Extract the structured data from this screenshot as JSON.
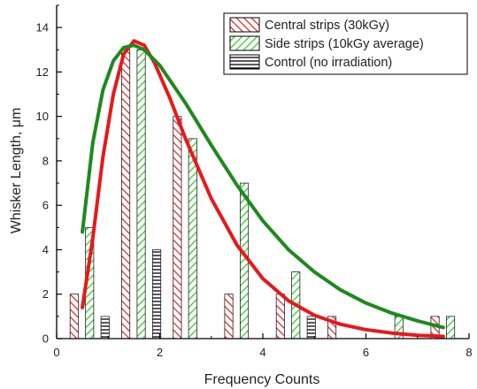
{
  "chart_data": {
    "type": "bar",
    "title": "",
    "xlabel": "Frequency Counts",
    "ylabel": "Whisker Length, μm",
    "xlim": [
      0,
      8
    ],
    "ylim": [
      0,
      15
    ],
    "x_ticks": [
      0,
      2,
      4,
      6,
      8
    ],
    "y_ticks": [
      0,
      2,
      4,
      6,
      8,
      10,
      12,
      14
    ],
    "grid": false,
    "legend_position": "top-right",
    "series": [
      {
        "name": "Central strips (30kGy)",
        "color": "#e02020",
        "pattern": "diagonal-left",
        "bars": [
          {
            "x": 0.2,
            "value": 2
          },
          {
            "x": 1.2,
            "value": 13
          },
          {
            "x": 2.2,
            "value": 10
          },
          {
            "x": 3.2,
            "value": 2
          },
          {
            "x": 4.2,
            "value": 2
          },
          {
            "x": 5.2,
            "value": 1
          },
          {
            "x": 7.2,
            "value": 1
          }
        ]
      },
      {
        "name": "Side strips (10kGy average)",
        "color": "#33cc33",
        "pattern": "diagonal-right",
        "bars": [
          {
            "x": 0.5,
            "value": 5
          },
          {
            "x": 1.5,
            "value": 13
          },
          {
            "x": 2.5,
            "value": 9
          },
          {
            "x": 3.5,
            "value": 7
          },
          {
            "x": 4.5,
            "value": 3
          },
          {
            "x": 6.5,
            "value": 1
          },
          {
            "x": 7.5,
            "value": 1
          }
        ]
      },
      {
        "name": "Control (no irradiation)",
        "color": "#000000",
        "pattern": "horizontal",
        "bars": [
          {
            "x": 0.8,
            "value": 1
          },
          {
            "x": 1.8,
            "value": 4
          },
          {
            "x": 4.8,
            "value": 1
          }
        ]
      }
    ],
    "fit_curves": [
      {
        "series": "Central strips (30kGy)",
        "color": "#e8181b",
        "points": [
          [
            0.5,
            1.4
          ],
          [
            0.7,
            4.5
          ],
          [
            0.9,
            8.2
          ],
          [
            1.1,
            11.0
          ],
          [
            1.3,
            12.8
          ],
          [
            1.5,
            13.4
          ],
          [
            1.7,
            13.2
          ],
          [
            1.9,
            12.4
          ],
          [
            2.2,
            10.8
          ],
          [
            2.5,
            9.0
          ],
          [
            3.0,
            6.3
          ],
          [
            3.5,
            4.2
          ],
          [
            4.0,
            2.7
          ],
          [
            4.5,
            1.7
          ],
          [
            5.0,
            1.05
          ],
          [
            5.5,
            0.65
          ],
          [
            6.0,
            0.4
          ],
          [
            6.5,
            0.25
          ],
          [
            7.0,
            0.15
          ],
          [
            7.5,
            0.1
          ]
        ]
      },
      {
        "series": "Side strips (10kGy average)",
        "color": "#1d8a1d",
        "points": [
          [
            0.5,
            4.8
          ],
          [
            0.7,
            8.8
          ],
          [
            0.9,
            11.2
          ],
          [
            1.1,
            12.5
          ],
          [
            1.3,
            13.1
          ],
          [
            1.5,
            13.2
          ],
          [
            1.7,
            13.0
          ],
          [
            2.0,
            12.3
          ],
          [
            2.5,
            10.6
          ],
          [
            3.0,
            8.7
          ],
          [
            3.5,
            6.9
          ],
          [
            4.0,
            5.3
          ],
          [
            4.5,
            4.0
          ],
          [
            5.0,
            3.0
          ],
          [
            5.5,
            2.2
          ],
          [
            6.0,
            1.6
          ],
          [
            6.5,
            1.15
          ],
          [
            7.0,
            0.8
          ],
          [
            7.5,
            0.5
          ]
        ]
      }
    ]
  }
}
